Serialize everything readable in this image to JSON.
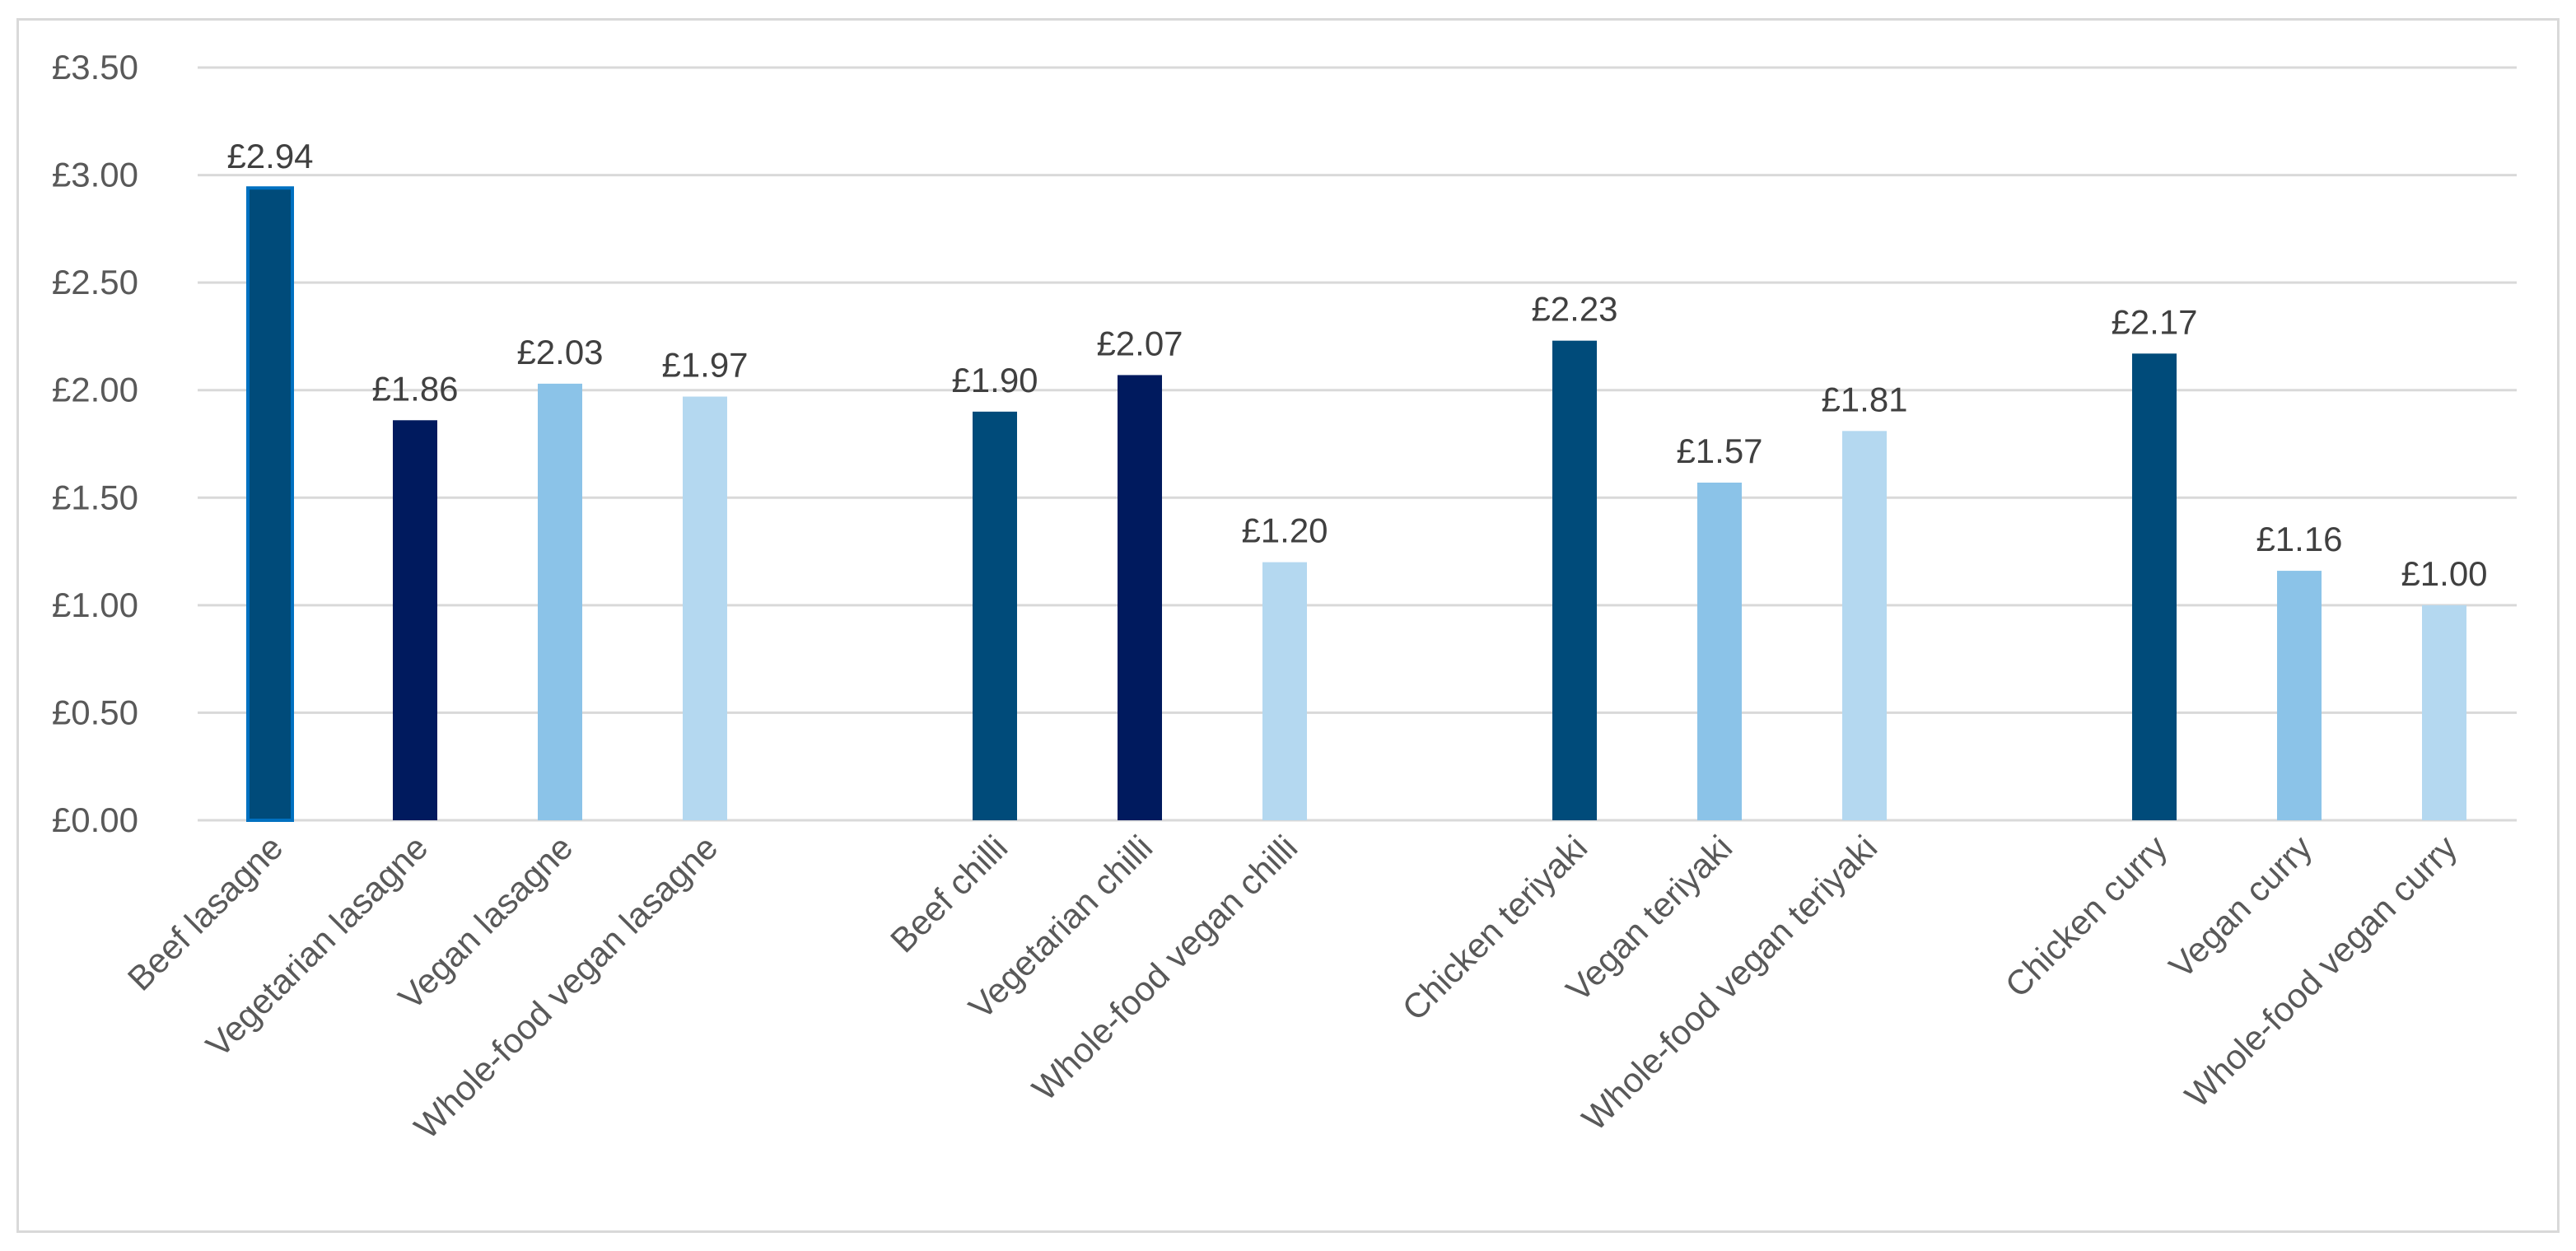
{
  "chart_data": {
    "type": "bar",
    "title": "",
    "xlabel": "",
    "ylabel": "",
    "ylim": [
      0,
      3.5
    ],
    "y_ticks": [
      0,
      0.5,
      1.0,
      1.5,
      2.0,
      2.5,
      3.0,
      3.5
    ],
    "y_tick_labels": [
      "£0.00",
      "£0.50",
      "£1.00",
      "£1.50",
      "£2.00",
      "£2.50",
      "£3.00",
      "£3.50"
    ],
    "grid": true,
    "legend": "none",
    "groups": [
      {
        "name": "lasagne",
        "bars": [
          {
            "category": "Beef lasagne",
            "value": 2.94,
            "label": "£2.94",
            "color": "#004B7A",
            "outline": "#0070C0"
          },
          {
            "category": "Vegetarian lasagne",
            "value": 1.86,
            "label": "£1.86",
            "color": "#001A5E"
          },
          {
            "category": "Vegan lasagne",
            "value": 2.03,
            "label": "£2.03",
            "color": "#8BC3E8"
          },
          {
            "category": "Whole-food vegan lasagne",
            "value": 1.97,
            "label": "£1.97",
            "color": "#B4D8F0"
          }
        ]
      },
      {
        "name": "chilli",
        "bars": [
          {
            "category": "Beef chilli",
            "value": 1.9,
            "label": "£1.90",
            "color": "#004B7A"
          },
          {
            "category": "Vegetarian chilli",
            "value": 2.07,
            "label": "£2.07",
            "color": "#001A5E"
          },
          {
            "category": "Whole-food vegan chilli",
            "value": 1.2,
            "label": "£1.20",
            "color": "#B4D8F0"
          }
        ]
      },
      {
        "name": "teriyaki",
        "bars": [
          {
            "category": "Chicken teriyaki",
            "value": 2.23,
            "label": "£2.23",
            "color": "#004B7A"
          },
          {
            "category": "Vegan teriyaki",
            "value": 1.57,
            "label": "£1.57",
            "color": "#8BC3E8"
          },
          {
            "category": "Whole-food vegan teriyaki",
            "value": 1.81,
            "label": "£1.81",
            "color": "#B4D8F0"
          }
        ]
      },
      {
        "name": "curry",
        "bars": [
          {
            "category": "Chicken curry",
            "value": 2.17,
            "label": "£2.17",
            "color": "#004B7A"
          },
          {
            "category": "Vegan curry",
            "value": 1.16,
            "label": "£1.16",
            "color": "#8BC3E8"
          },
          {
            "category": "Whole-food vegan curry",
            "value": 1.0,
            "label": "£1.00",
            "color": "#B4D8F0"
          }
        ]
      }
    ]
  }
}
